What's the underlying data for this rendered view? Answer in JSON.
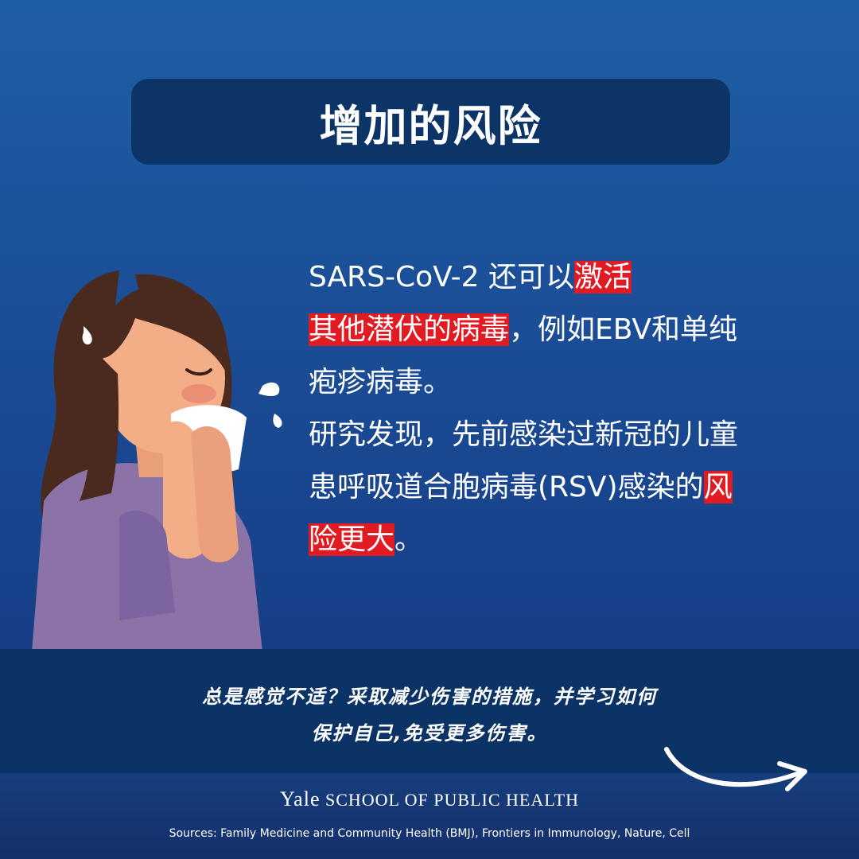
{
  "title": "增加的风险",
  "body": {
    "line1_a": "SARS-CoV-2 还可以",
    "line1_hl": "激活",
    "line2_hl": "其他潜伏的病毒",
    "line2_b": "，例如EBV和单纯",
    "line3": "疱疹病毒。",
    "line4": "研究发现，先前感染过新冠的儿童",
    "line5_a": "患呼吸道合胞病毒(RSV)感染的",
    "line5_hl": "风",
    "line6_hl": "险更大",
    "line6_b": "。"
  },
  "footer": {
    "line1": "总是感觉不适？采取减少伤害的措施，并学习如何",
    "line2": "保护自己,免受更多伤害。"
  },
  "brand": {
    "yale": "Yale",
    "school": "SCHOOL OF PUBLIC HEALTH"
  },
  "sources": "Sources:  Family Medicine and Community Health (BMJ), Frontiers in Immunology, Nature, Cell",
  "icons": [
    "sneezing-woman-illustration",
    "curved-arrow-icon"
  ],
  "colors": {
    "background": "#1b4f97",
    "highlight": "#e21b23",
    "band": "#0c3366"
  }
}
